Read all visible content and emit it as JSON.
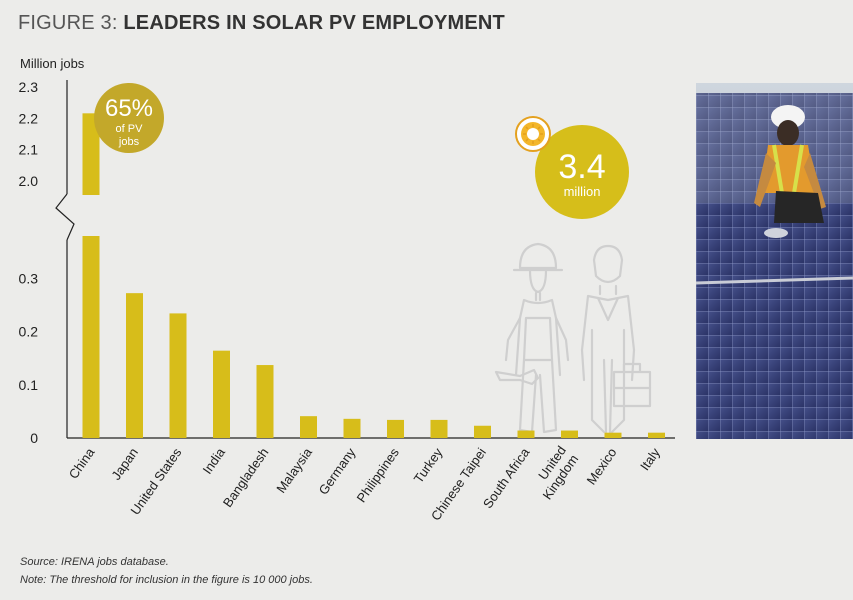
{
  "figure": {
    "title_lead": "FIGURE 3:",
    "title_main": "LEADERS IN SOLAR PV EMPLOYMENT"
  },
  "chart_data": {
    "type": "bar",
    "ylabel": "Million jobs",
    "categories": [
      "China",
      "Japan",
      "United States",
      "India",
      "Bangladesh",
      "Malaysia",
      "Germany",
      "Philippines",
      "Turkey",
      "Chinese Taipei",
      "South Africa",
      "United Kingdom",
      "Mexico",
      "Italy"
    ],
    "category_lines": [
      [
        "China"
      ],
      [
        "Japan"
      ],
      [
        "United States"
      ],
      [
        "India"
      ],
      [
        "Bangladesh"
      ],
      [
        "Malaysia"
      ],
      [
        "Germany"
      ],
      [
        "Philippines"
      ],
      [
        "Turkey"
      ],
      [
        "Chinese Taipei"
      ],
      [
        "South Africa"
      ],
      [
        "United",
        "Kingdom"
      ],
      [
        "Mexico"
      ],
      [
        "Italy"
      ]
    ],
    "values": [
      2.216,
      0.272,
      0.234,
      0.164,
      0.137,
      0.041,
      0.036,
      0.034,
      0.034,
      0.023,
      0.014,
      0.014,
      0.01,
      0.01
    ],
    "lower_ticks": [
      0,
      0.1,
      0.2,
      0.3
    ],
    "lower_range": [
      0,
      0.4
    ],
    "upper_ticks": [
      "2.0",
      "2.1",
      "2.2",
      "2.3"
    ],
    "upper_range": [
      2.0,
      2.3
    ],
    "axis_break": true,
    "bar_color": "#d7bd1a",
    "grid": false
  },
  "callouts": {
    "china_share": {
      "value": "65%",
      "line1": "of PV",
      "line2": "jobs",
      "color": "#c3a82a"
    },
    "total": {
      "value": "3.4",
      "unit": "million",
      "color": "#d6be1a"
    }
  },
  "source": "Source: IRENA jobs database.",
  "note": "Note: The threshold for inclusion in the figure is 10 000 jobs."
}
